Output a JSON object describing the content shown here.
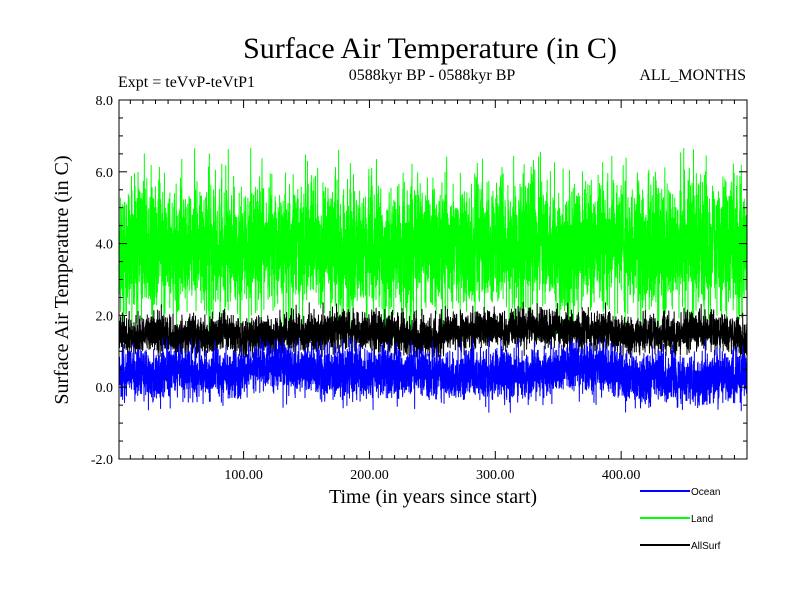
{
  "chart_data": {
    "type": "line",
    "title": "Surface Air Temperature (in C)",
    "subtitle_left": "Expt = teVvP-teVtP1",
    "subtitle_center": "0588kyr BP - 0588kyr BP",
    "subtitle_right": "ALL_MONTHS",
    "xlabel": "Time (in years since start)",
    "ylabel": "Surface Air Temperature (in C)",
    "xlim": [
      1,
      500
    ],
    "ylim": [
      -2.0,
      8.0
    ],
    "x_ticks": [
      100,
      200,
      300,
      400
    ],
    "x_tick_labels": [
      "100.00",
      "200.00",
      "300.00",
      "400.00"
    ],
    "y_ticks": [
      -2,
      0,
      2,
      4,
      6,
      8
    ],
    "y_tick_labels": [
      "-2.0",
      "0.0",
      "2.0",
      "4.0",
      "6.0",
      "8.0"
    ],
    "grid": false,
    "legend_position": "bottom-right, outside plot",
    "series": [
      {
        "name": "Land",
        "color": "#00ff00",
        "mean": 3.9,
        "min": 1.3,
        "max": 6.7
      },
      {
        "name": "AllSurf",
        "color": "#000000",
        "mean": 1.5,
        "min": 0.8,
        "max": 2.4
      },
      {
        "name": "Ocean",
        "color": "#0000ff",
        "mean": 0.4,
        "min": -0.7,
        "max": 1.4
      }
    ],
    "legend_order": [
      "Ocean",
      "Land",
      "AllSurf"
    ]
  }
}
